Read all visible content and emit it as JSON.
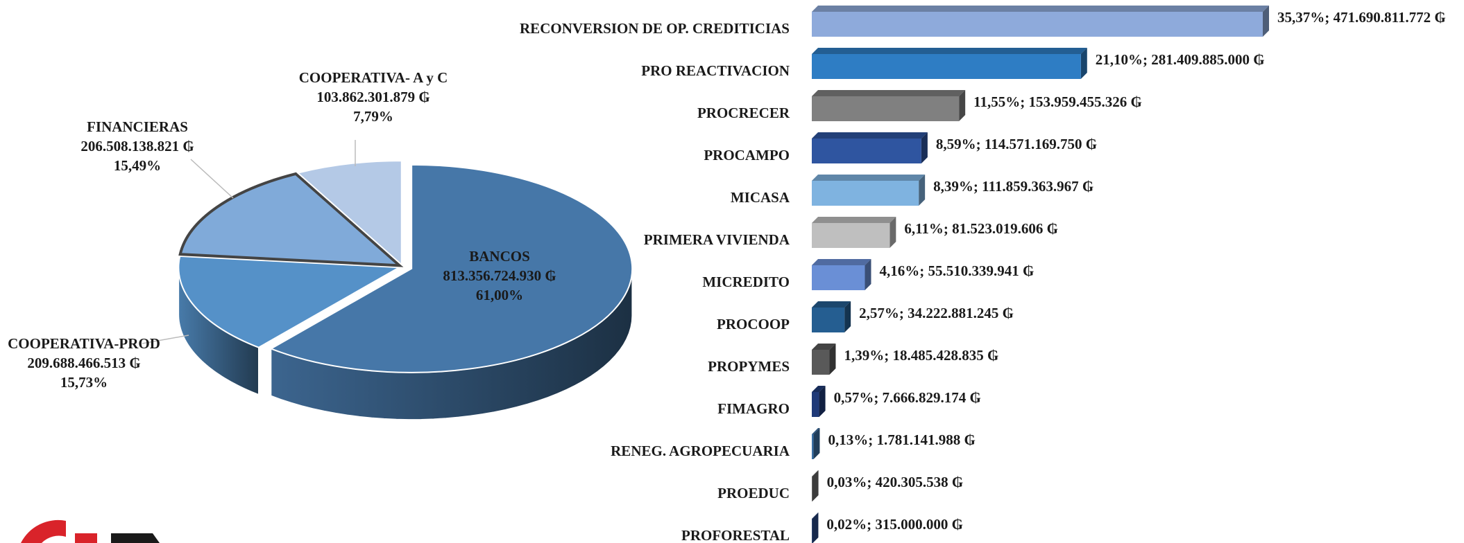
{
  "chart_data": [
    {
      "type": "pie",
      "categories": [
        "BANCOS",
        "COOPERATIVA-PROD",
        "FINANCIERAS",
        "COOPERATIVA- A y C"
      ],
      "values": [
        61.0,
        15.73,
        15.49,
        7.79
      ],
      "value_labels": [
        "61,00%",
        "15,73%",
        "15,49%",
        "7,79%"
      ],
      "amount_labels": [
        "813.356.724.930 ₲",
        "209.688.466.513 ₲",
        "206.508.138.821 ₲",
        "103.862.301.879 ₲"
      ],
      "colors": [
        "#4677a8",
        "#5591c8",
        "#80aad9",
        "#b4c9e6"
      ]
    },
    {
      "type": "hbar",
      "categories": [
        "RECONVERSION DE OP. CREDITICIAS",
        "PRO REACTIVACION",
        "PROCRECER",
        "PROCAMPO",
        "MICASA",
        "PRIMERA VIVIENDA",
        "MICREDITO",
        "PROCOOP",
        "PROPYMES",
        "FIMAGRO",
        "RENEG. AGROPECUARIA",
        "PROEDUC",
        "PROFORESTAL"
      ],
      "values": [
        471690811772,
        281409885000,
        153959455326,
        114571169750,
        111859363967,
        81523019606,
        55510339941,
        34222881245,
        18485428835,
        7666829174,
        1781141988,
        420305538,
        315000000
      ],
      "value_labels": [
        "35,37%; 471.690.811.772 ₲",
        "21,10%; 281.409.885.000 ₲",
        "11,55%; 153.959.455.326 ₲",
        "8,59%; 114.571.169.750 ₲",
        "8,39%; 111.859.363.967 ₲",
        "6,11%; 81.523.019.606 ₲",
        "4,16%; 55.510.339.941 ₲",
        "2,57%; 34.222.881.245 ₲",
        "1,39%; 18.485.428.835 ₲",
        "0,57%; 7.666.829.174 ₲",
        "0,13%; 1.781.141.988 ₲",
        "0,03%; 420.305.538 ₲",
        "0,02%; 315.000.000 ₲"
      ],
      "colors": [
        "#8eaadb",
        "#2e7dc4",
        "#808080",
        "#2f55a0",
        "#7fb3e0",
        "#bfbfbf",
        "#6a8fd6",
        "#255e91",
        "#595959",
        "#1f3a78",
        "#3a6fa4",
        "#6d6d6d",
        "#2a4a8a"
      ]
    }
  ]
}
